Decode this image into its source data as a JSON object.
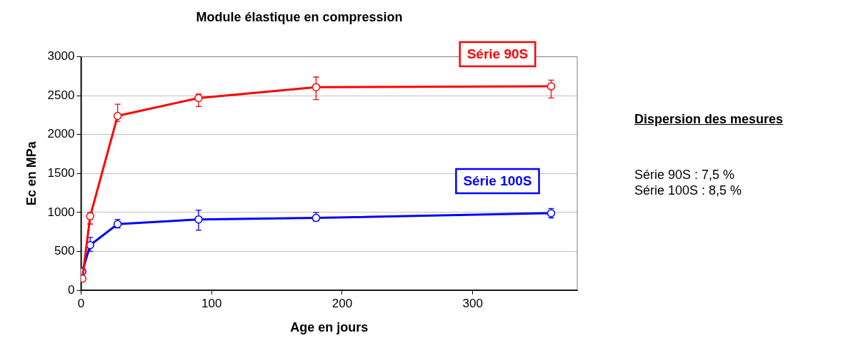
{
  "chart_data": {
    "type": "line",
    "title": "Module élastique en compression",
    "xlabel": "Age en jours",
    "ylabel": "Ec en MPa",
    "xlim": [
      0,
      380
    ],
    "xticks": [
      0,
      100,
      200,
      300
    ],
    "ylim": [
      0,
      3000
    ],
    "yticks": [
      0,
      500,
      1000,
      1500,
      2000,
      2500,
      3000
    ],
    "grid": "y",
    "legend": false,
    "marker": "circle",
    "line_style": "solid",
    "series": [
      {
        "name": "Série 90S",
        "color": "#ff0000",
        "x": [
          1,
          7,
          28,
          90,
          180,
          360
        ],
        "values": [
          150,
          950,
          2240,
          2470,
          2610,
          2620
        ],
        "errors": [
          null,
          [
            850,
            1000
          ],
          [
            2170,
            2390
          ],
          [
            2360,
            2520
          ],
          [
            2450,
            2740
          ],
          [
            2470,
            2700
          ]
        ]
      },
      {
        "name": "Série 100S",
        "color": "#0000ff",
        "x": [
          1,
          7,
          28,
          90,
          180,
          360
        ],
        "values": [
          240,
          580,
          850,
          910,
          930,
          990
        ],
        "errors": [
          null,
          [
            500,
            680
          ],
          [
            800,
            910
          ],
          [
            770,
            1030
          ],
          [
            890,
            1000
          ],
          [
            930,
            1050
          ]
        ]
      }
    ],
    "annotations": [
      "Dispersion des mesures",
      "Série 90S : 7,5 %",
      "Série 100S : 8,5 %"
    ]
  }
}
